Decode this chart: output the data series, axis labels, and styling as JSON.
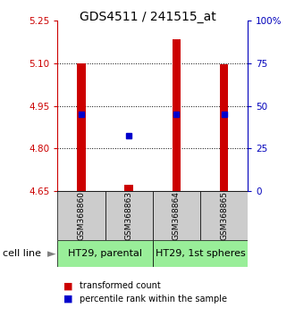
{
  "title": "GDS4511 / 241515_at",
  "samples": [
    "GSM368860",
    "GSM368863",
    "GSM368864",
    "GSM368865"
  ],
  "ylim_left": [
    4.65,
    5.25
  ],
  "ylim_right": [
    0,
    100
  ],
  "yticks_left": [
    4.65,
    4.8,
    4.95,
    5.1,
    5.25
  ],
  "yticks_right": [
    0,
    25,
    50,
    75,
    100
  ],
  "ytick_labels_right": [
    "0",
    "25",
    "50",
    "75",
    "100%"
  ],
  "bar_bottom": 4.65,
  "bar_tops": [
    5.1,
    4.672,
    5.185,
    5.095
  ],
  "percentile_values": [
    4.922,
    4.845,
    4.922,
    4.922
  ],
  "bar_color": "#cc0000",
  "blue_color": "#0000cc",
  "sample_box_color": "#cccccc",
  "cell_line_color": "#99ee99",
  "background_color": "#ffffff",
  "left_axis_color": "#cc0000",
  "right_axis_color": "#0000bb",
  "title_fontsize": 10,
  "tick_fontsize": 7.5,
  "label_fontsize": 8,
  "sample_fontsize": 6.5,
  "bar_width": 0.18
}
